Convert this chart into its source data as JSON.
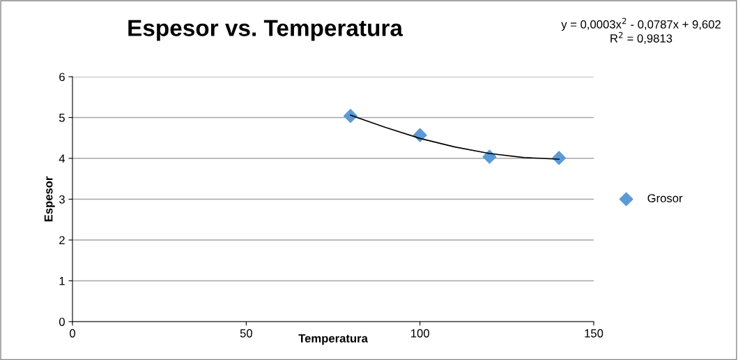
{
  "chart_data": {
    "type": "scatter",
    "title": "Espesor vs. Temperatura",
    "xlabel": "Temperatura",
    "ylabel": "Espesor",
    "xlim": [
      0,
      150
    ],
    "xticks": [
      0,
      50,
      100,
      150
    ],
    "ylim": [
      0,
      6
    ],
    "yticks": [
      0,
      1,
      2,
      3,
      4,
      5,
      6
    ],
    "grid": "y",
    "legend": "right",
    "series": [
      {
        "name": "Grosor",
        "color": "#5b9bd5",
        "marker": "diamond",
        "x": [
          80,
          100,
          120,
          140
        ],
        "values": [
          5.04,
          4.57,
          4.04,
          4.01
        ]
      },
      {
        "type": "line",
        "marker": "none",
        "color": "#000000",
        "x": [
          80,
          90,
          100,
          110,
          120,
          130,
          140
        ],
        "values": [
          5.06,
          4.76,
          4.49,
          4.28,
          4.12,
          4.02,
          3.98
        ]
      }
    ],
    "annotations": [
      "y = 0,0003x$^{2}$ - 0,0787x + 9,602\nR$^{2}$ = 0,9813"
    ]
  }
}
